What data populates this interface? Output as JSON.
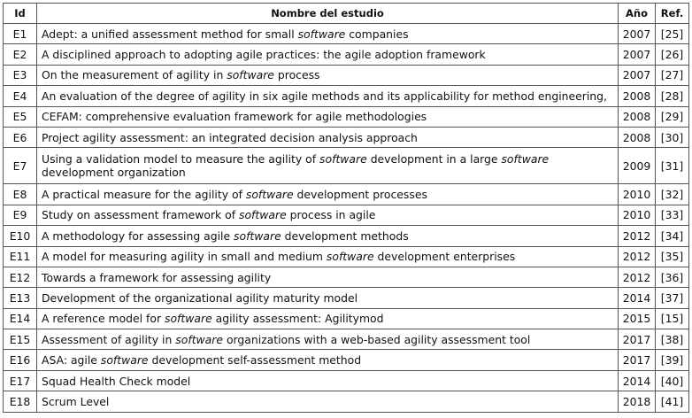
{
  "table": {
    "header": [
      "Id",
      "Nombre del estudio",
      "Año",
      "Ref."
    ],
    "rows": [
      {
        "id": "E1",
        "title": [
          "Adept: a unified assessment method for small ",
          "software",
          " companies"
        ],
        "year": "2007",
        "ref": "[25]"
      },
      {
        "id": "E2",
        "title": [
          "A disciplined approach to adopting agile practices: the agile adoption framework"
        ],
        "year": "2007",
        "ref": "[26]"
      },
      {
        "id": "E3",
        "title": [
          "On the measurement of agility in ",
          "software",
          " process"
        ],
        "year": "2007",
        "ref": "[27]"
      },
      {
        "id": "E4",
        "title": [
          "An evaluation of the degree of agility in six agile methods and its applicability for method engineering,"
        ],
        "year": "2008",
        "ref": "[28]"
      },
      {
        "id": "E5",
        "title": [
          "CEFAM: comprehensive evaluation framework for agile methodologies"
        ],
        "year": "2008",
        "ref": "[29]"
      },
      {
        "id": "E6",
        "title": [
          "Project agility assessment: an integrated decision analysis approach"
        ],
        "year": "2008",
        "ref": "[30]"
      },
      {
        "id": "E7",
        "title": [
          "Using a validation model to measure the agility of ",
          "software",
          " development in a large ",
          "software",
          " development organization"
        ],
        "year": "2009",
        "ref": "[31]"
      },
      {
        "id": "E8",
        "title": [
          "A practical measure for the agility of ",
          "software",
          " development processes"
        ],
        "year": "2010",
        "ref": "[32]"
      },
      {
        "id": "E9",
        "title": [
          "Study on assessment framework of ",
          "software",
          " process in agile"
        ],
        "year": "2010",
        "ref": "[33]"
      },
      {
        "id": "E10",
        "title": [
          "A methodology for assessing agile ",
          "software",
          " development methods"
        ],
        "year": "2012",
        "ref": "[34]"
      },
      {
        "id": "E11",
        "title": [
          "A model for measuring agility in small and medium ",
          "software",
          " development enterprises"
        ],
        "year": "2012",
        "ref": "[35]"
      },
      {
        "id": "E12",
        "title": [
          "Towards a framework for assessing agility"
        ],
        "year": "2012",
        "ref": "[36]"
      },
      {
        "id": "E13",
        "title": [
          "Development of the organizational agility maturity model"
        ],
        "year": "2014",
        "ref": "[37]"
      },
      {
        "id": "E14",
        "title": [
          "A reference model for ",
          "software",
          " agility assessment: Agilitymod"
        ],
        "year": "2015",
        "ref": "[15]"
      },
      {
        "id": "E15",
        "title": [
          "Assessment of agility in ",
          "software",
          " organizations with a web-based agility assessment tool"
        ],
        "year": "2017",
        "ref": "[38]"
      },
      {
        "id": "E16",
        "title": [
          "ASA: agile ",
          "software",
          " development self-assessment method"
        ],
        "year": "2017",
        "ref": "[39]"
      },
      {
        "id": "E17",
        "title": [
          "Squad Health Check model"
        ],
        "year": "2014",
        "ref": "[40]"
      },
      {
        "id": "E18",
        "title": [
          "Scrum Level"
        ],
        "year": "2018",
        "ref": "[41]"
      }
    ]
  }
}
